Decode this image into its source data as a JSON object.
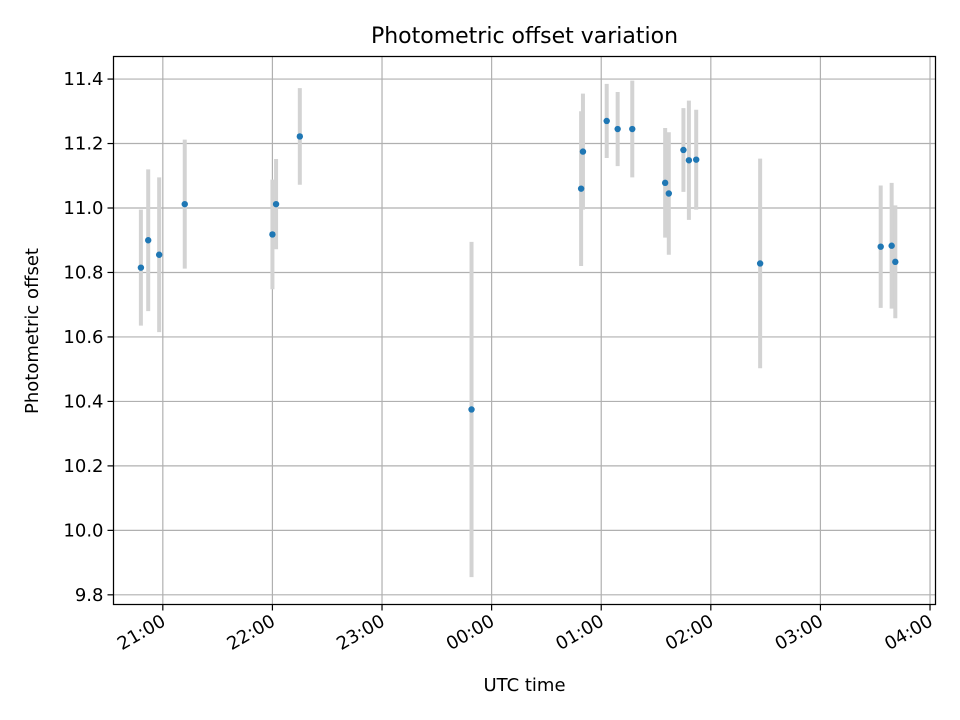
{
  "chart_data": {
    "type": "scatter",
    "title": "Photometric offset variation",
    "xlabel": "UTC time",
    "ylabel": "Photometric offset",
    "x_tick_labels": [
      "21:00",
      "22:00",
      "23:00",
      "00:00",
      "01:00",
      "02:00",
      "03:00",
      "04:00"
    ],
    "x_tick_values": [
      "21:00",
      "22:00",
      "23:00",
      "00:00",
      "01:00",
      "02:00",
      "03:00",
      "04:00"
    ],
    "y_tick_labels": [
      "9.8",
      "10.0",
      "10.2",
      "10.4",
      "10.6",
      "10.8",
      "11.0",
      "11.2",
      "11.4"
    ],
    "y_tick_values": [
      9.8,
      10.0,
      10.2,
      10.4,
      10.6,
      10.8,
      11.0,
      11.2,
      11.4
    ],
    "xlim": [
      "20:33",
      "04:03"
    ],
    "ylim": [
      9.77,
      11.47
    ],
    "grid": true,
    "marker_color": "#1f77b4",
    "errorbar_color": "#d3d3d3",
    "points": [
      {
        "x": "20:48",
        "y": 10.815,
        "err": 0.18
      },
      {
        "x": "20:52",
        "y": 10.9,
        "err": 0.22
      },
      {
        "x": "20:58",
        "y": 10.855,
        "err": 0.24
      },
      {
        "x": "21:12",
        "y": 11.012,
        "err": 0.2
      },
      {
        "x": "22:00",
        "y": 10.918,
        "err": 0.17
      },
      {
        "x": "22:02",
        "y": 11.012,
        "err": 0.14
      },
      {
        "x": "22:15",
        "y": 11.222,
        "err": 0.15
      },
      {
        "x": "23:49",
        "y": 10.375,
        "err": 0.52
      },
      {
        "x": "00:49",
        "y": 11.06,
        "err": 0.24
      },
      {
        "x": "00:50",
        "y": 11.175,
        "err": 0.18
      },
      {
        "x": "01:03",
        "y": 11.27,
        "err": 0.115
      },
      {
        "x": "01:09",
        "y": 11.245,
        "err": 0.115
      },
      {
        "x": "01:17",
        "y": 11.245,
        "err": 0.15
      },
      {
        "x": "01:35",
        "y": 11.078,
        "err": 0.17
      },
      {
        "x": "01:37",
        "y": 11.045,
        "err": 0.19
      },
      {
        "x": "01:45",
        "y": 11.18,
        "err": 0.13
      },
      {
        "x": "01:48",
        "y": 11.148,
        "err": 0.185
      },
      {
        "x": "01:52",
        "y": 11.15,
        "err": 0.155
      },
      {
        "x": "02:27",
        "y": 10.828,
        "err": 0.325
      },
      {
        "x": "03:33",
        "y": 10.88,
        "err": 0.19
      },
      {
        "x": "03:39",
        "y": 10.883,
        "err": 0.195
      },
      {
        "x": "03:41",
        "y": 10.833,
        "err": 0.175
      }
    ]
  }
}
